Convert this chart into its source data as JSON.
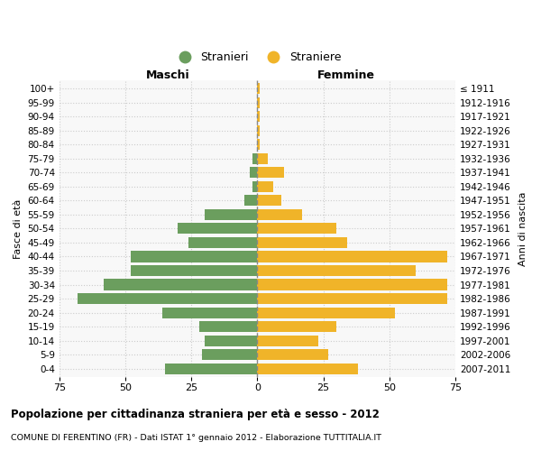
{
  "age_groups": [
    "0-4",
    "5-9",
    "10-14",
    "15-19",
    "20-24",
    "25-29",
    "30-34",
    "35-39",
    "40-44",
    "45-49",
    "50-54",
    "55-59",
    "60-64",
    "65-69",
    "70-74",
    "75-79",
    "80-84",
    "85-89",
    "90-94",
    "95-99",
    "100+"
  ],
  "birth_years": [
    "2007-2011",
    "2002-2006",
    "1997-2001",
    "1992-1996",
    "1987-1991",
    "1982-1986",
    "1977-1981",
    "1972-1976",
    "1967-1971",
    "1962-1966",
    "1957-1961",
    "1952-1956",
    "1947-1951",
    "1942-1946",
    "1937-1941",
    "1932-1936",
    "1927-1931",
    "1922-1926",
    "1917-1921",
    "1912-1916",
    "≤ 1911"
  ],
  "maschi": [
    35,
    21,
    20,
    22,
    36,
    68,
    58,
    48,
    48,
    26,
    30,
    20,
    5,
    2,
    3,
    2,
    0,
    0,
    0,
    0,
    0
  ],
  "femmine": [
    38,
    27,
    23,
    30,
    52,
    72,
    72,
    60,
    72,
    34,
    30,
    17,
    9,
    6,
    10,
    4,
    1,
    1,
    1,
    1,
    1
  ],
  "male_color": "#6b9e5e",
  "female_color": "#f0b429",
  "grid_color": "#cccccc",
  "dashed_line_color": "#888888",
  "xlim": 75,
  "title": "Popolazione per cittadinanza straniera per età e sesso - 2012",
  "subtitle": "COMUNE DI FERENTINO (FR) - Dati ISTAT 1° gennaio 2012 - Elaborazione TUTTITALIA.IT",
  "legend_stranieri": "Stranieri",
  "legend_straniere": "Straniere",
  "maschi_label": "Maschi",
  "femmine_label": "Femmine",
  "fasce_label": "Fasce di età",
  "anni_label": "Anni di nascita",
  "bg_color": "#f8f8f8",
  "bar_height": 0.78
}
